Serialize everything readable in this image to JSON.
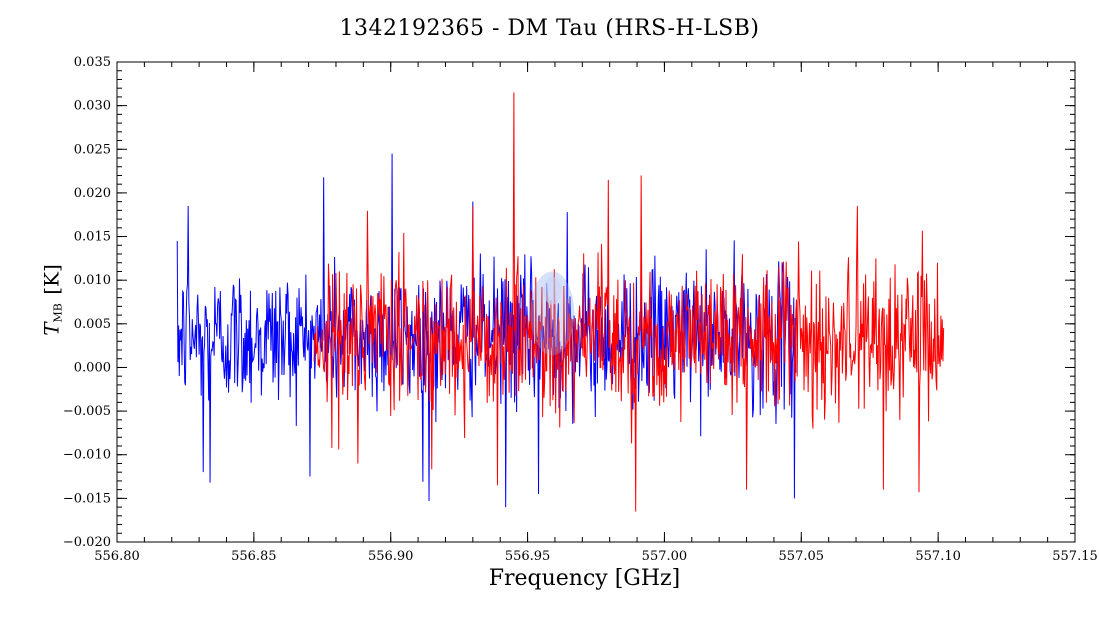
{
  "chart_data": {
    "type": "line",
    "title": "1342192365 - DM Tau (HRS-H-LSB)",
    "xlabel": "Frequency [GHz]",
    "ylabel": {
      "symbol": "T",
      "subscript": "MB",
      "unit": "[K]"
    },
    "xlim": [
      556.8,
      557.15
    ],
    "ylim": [
      -0.02,
      0.035
    ],
    "x_ticks": [
      "556.80",
      "556.85",
      "556.90",
      "556.95",
      "557.00",
      "557.05",
      "557.10",
      "557.15"
    ],
    "y_ticks": [
      "−0.020",
      "−0.015",
      "−0.010",
      "−0.005",
      "0.000",
      "0.005",
      "0.010",
      "0.015",
      "0.020",
      "0.025",
      "0.030",
      "0.035"
    ],
    "grid": false,
    "series": [
      {
        "color": "#0000ff",
        "x_range": [
          556.822,
          557.048
        ],
        "noise_rms": 0.0055,
        "baseline": 0.0035,
        "peaks": [
          {
            "x": 556.9005,
            "y": 0.0245
          },
          {
            "x": 556.826,
            "y": 0.0185
          },
          {
            "x": 556.8755,
            "y": 0.0218
          },
          {
            "x": 556.93,
            "y": 0.019
          },
          {
            "x": 556.9645,
            "y": 0.0178
          },
          {
            "x": 556.8315,
            "y": -0.012
          },
          {
            "x": 556.834,
            "y": -0.0132
          },
          {
            "x": 556.914,
            "y": -0.0153
          },
          {
            "x": 556.942,
            "y": -0.016
          },
          {
            "x": 556.954,
            "y": -0.0145
          },
          {
            "x": 557.0475,
            "y": -0.015
          }
        ]
      },
      {
        "color": "#ff0000",
        "x_range": [
          556.872,
          557.102
        ],
        "noise_rms": 0.0058,
        "baseline": 0.0035,
        "peaks": [
          {
            "x": 556.945,
            "y": 0.0315
          },
          {
            "x": 556.9795,
            "y": 0.0215
          },
          {
            "x": 556.9915,
            "y": 0.022
          },
          {
            "x": 557.0705,
            "y": 0.0185
          },
          {
            "x": 556.93,
            "y": 0.0185
          },
          {
            "x": 556.9895,
            "y": -0.0165
          },
          {
            "x": 556.939,
            "y": -0.0135
          },
          {
            "x": 557.03,
            "y": -0.014
          },
          {
            "x": 557.08,
            "y": -0.014
          },
          {
            "x": 557.093,
            "y": -0.0143
          },
          {
            "x": 556.888,
            "y": -0.011
          }
        ]
      }
    ]
  }
}
